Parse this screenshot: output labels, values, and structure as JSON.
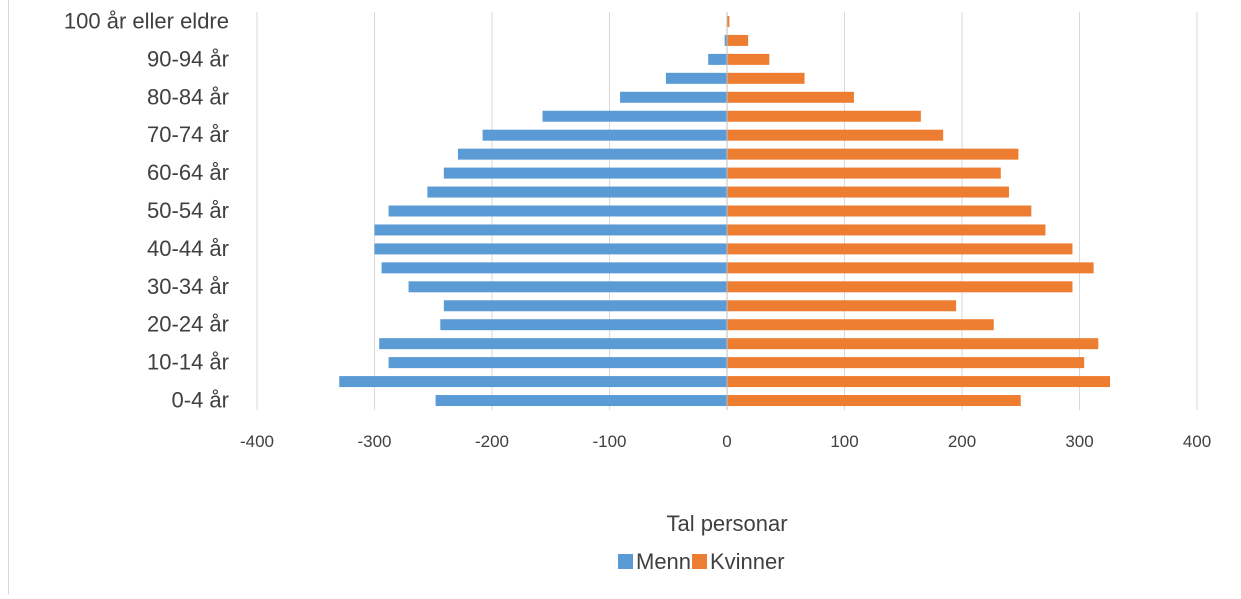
{
  "chart_data": {
    "type": "bar",
    "orientation": "horizontal",
    "stacked": true,
    "categories": [
      "0-4 år",
      "5-9 år",
      "10-14 år",
      "15-19 år",
      "20-24 år",
      "25-29 år",
      "30-34 år",
      "35-39 år",
      "40-44 år",
      "45-49 år",
      "50-54 år",
      "55-59 år",
      "60-64 år",
      "65-69 år",
      "70-74 år",
      "75-79 år",
      "80-84 år",
      "85-89 år",
      "90-94 år",
      "95-99 år",
      "100 år eller eldre"
    ],
    "shown_category_labels": [
      "0-4 år",
      "10-14 år",
      "20-24 år",
      "30-34 år",
      "40-44 år",
      "50-54 år",
      "60-64 år",
      "70-74 år",
      "80-84 år",
      "90-94 år",
      "100 år eller eldre"
    ],
    "series": [
      {
        "name": "Menn",
        "color": "#5b9bd5",
        "values": [
          -248,
          -330,
          -288,
          -296,
          -244,
          -241,
          -271,
          -294,
          -300,
          -300,
          -288,
          -255,
          -241,
          -229,
          -208,
          -157,
          -91,
          -52,
          -16,
          -2,
          0
        ]
      },
      {
        "name": "Kvinner",
        "color": "#ed7d31",
        "values": [
          250,
          326,
          304,
          316,
          227,
          195,
          294,
          312,
          294,
          271,
          259,
          240,
          233,
          248,
          184,
          165,
          108,
          66,
          36,
          18,
          2
        ]
      }
    ],
    "x_ticks": [
      -400,
      -300,
      -200,
      -100,
      0,
      100,
      200,
      300,
      400
    ],
    "xlim": [
      -400,
      400
    ],
    "xlabel": "Tal personar",
    "ylabel": "",
    "title": "",
    "grid": "vertical",
    "legend": {
      "position": "bottom",
      "entries": [
        "Menn",
        "Kvinner"
      ]
    }
  }
}
